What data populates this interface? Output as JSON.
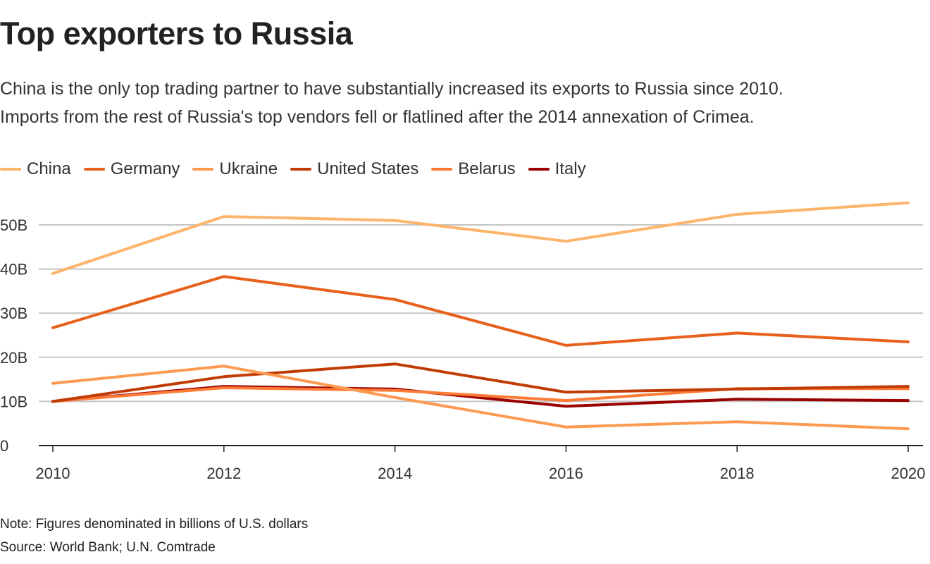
{
  "header": {
    "title": "Top exporters to Russia",
    "subtitle_line1": "China is the only top trading partner to have substantially increased its exports to Russia since 2010.",
    "subtitle_line2": "Imports from the rest of Russia's top vendors fell or flatlined after the 2014 annexation of Crimea."
  },
  "footer": {
    "note": "Note: Figures denominated in billions of U.S. dollars",
    "source": "Source: World Bank; U.N. Comtrade"
  },
  "chart_data": {
    "type": "line",
    "title": "Top exporters to Russia",
    "xlabel": "",
    "ylabel": "",
    "x": [
      2010,
      2012,
      2014,
      2016,
      2018,
      2020
    ],
    "x_tick_labels": [
      "2010",
      "2012",
      "2014",
      "2016",
      "2018",
      "2020"
    ],
    "ylim": [
      0,
      55
    ],
    "y_ticks": [
      0,
      10,
      20,
      30,
      40,
      50
    ],
    "y_tick_labels": [
      "0",
      "10B",
      "20B",
      "30B",
      "40B",
      "50B"
    ],
    "grid": true,
    "legend_position": "top-left",
    "series": [
      {
        "name": "China",
        "color": "#fdb46b",
        "values": [
          39.0,
          51.9,
          51.0,
          46.3,
          52.4,
          55.0
        ]
      },
      {
        "name": "Germany",
        "color": "#e8601c",
        "values": [
          26.7,
          38.3,
          33.1,
          22.7,
          25.5,
          23.5
        ]
      },
      {
        "name": "Ukraine",
        "color": "#fe9a50",
        "values": [
          14.1,
          18.0,
          10.9,
          4.2,
          5.4,
          3.8
        ]
      },
      {
        "name": "United States",
        "color": "#c13b05",
        "values": [
          10.0,
          15.6,
          18.5,
          12.1,
          12.8,
          13.4
        ]
      },
      {
        "name": "Belarus",
        "color": "#fd7b34",
        "values": [
          10.0,
          13.1,
          12.5,
          10.2,
          12.9,
          12.9
        ]
      },
      {
        "name": "Italy",
        "color": "#9b0000",
        "values": [
          10.0,
          13.4,
          12.8,
          8.9,
          10.5,
          10.2
        ]
      }
    ]
  }
}
